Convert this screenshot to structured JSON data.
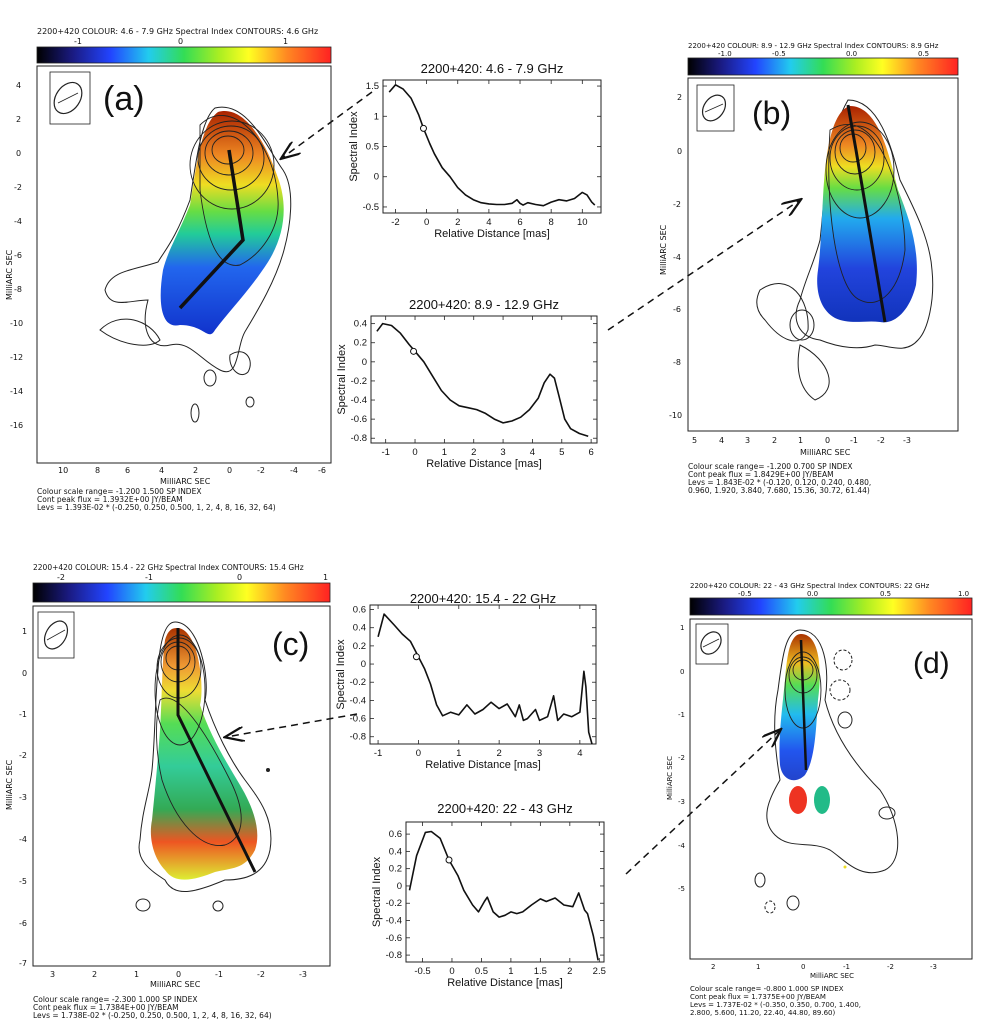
{
  "source": "2200+420",
  "panels": {
    "a": {
      "label": "(a)",
      "header": "2200+420   COLOUR: 4.6 - 7.9 GHz Spectral Index   CONTOURS: 4.6 GHz",
      "colorbar_ticks": [
        "-1",
        "0",
        "1"
      ],
      "xlabel": "MilliARC SEC",
      "ylabel": "MilliARC SEC",
      "x_ticks": [
        "10",
        "8",
        "6",
        "4",
        "2",
        "0",
        "-2",
        "-4",
        "-6"
      ],
      "y_ticks": [
        "4",
        "2",
        "0",
        "-2",
        "-4",
        "-6",
        "-8",
        "-10",
        "-12",
        "-14",
        "-16"
      ],
      "footer": [
        "Colour scale range= -1.200 1.500 SP INDEX",
        "Cont peak flux = 1.3932E+00 JY/BEAM",
        "Levs = 1.393E-02 * (-0.250, 0.250, 0.500, 1, 2, 4, 8, 16, 32, 64)"
      ]
    },
    "b": {
      "label": "(b)",
      "header": "2200+420   COLOUR: 8.9 - 12.9 GHz Spectral Index   CONTOURS: 8.9 GHz",
      "colorbar_ticks": [
        "-1.0",
        "-0.5",
        "0.0",
        "0.5"
      ],
      "xlabel": "MilliARC SEC",
      "ylabel": "MilliARC SEC",
      "x_ticks": [
        "5",
        "4",
        "3",
        "2",
        "1",
        "0",
        "-1",
        "-2",
        "-3"
      ],
      "y_ticks": [
        "2",
        "0",
        "-2",
        "-4",
        "-6",
        "-8",
        "-10"
      ],
      "footer": [
        "Colour scale range= -1.200 0.700 SP INDEX",
        "Cont peak flux = 1.8429E+00 JY/BEAM",
        "Levs = 1.843E-02 * (-0.120, 0.120, 0.240, 0.480,",
        "0.960, 1.920, 3.840, 7.680, 15.36, 30.72, 61.44)"
      ]
    },
    "c": {
      "label": "(c)",
      "header": "2200+420   COLOUR: 15.4 - 22 GHz Spectral Index   CONTOURS: 15.4 GHz",
      "colorbar_ticks": [
        "-2",
        "-1",
        "0",
        "1"
      ],
      "xlabel": "MilliARC SEC",
      "ylabel": "MilliARC SEC",
      "x_ticks": [
        "3",
        "2",
        "1",
        "0",
        "-1",
        "-2",
        "-3"
      ],
      "y_ticks": [
        "1",
        "0",
        "-1",
        "-2",
        "-3",
        "-4",
        "-5",
        "-6",
        "-7"
      ],
      "footer": [
        "Colour scale range= -2.300 1.000 SP INDEX",
        "Cont peak flux = 1.7384E+00 JY/BEAM",
        "Levs = 1.738E-02 * (-0.250, 0.250, 0.500, 1, 2, 4, 8, 16, 32, 64)"
      ]
    },
    "d": {
      "label": "(d)",
      "header": "2200+420   COLOUR: 22 - 43 GHz Spectral Index   CONTOURS: 22 GHz",
      "colorbar_ticks": [
        "-0.5",
        "0.0",
        "0.5",
        "1.0"
      ],
      "xlabel": "MilliARC SEC",
      "ylabel": "MilliARC SEC",
      "x_ticks": [
        "2",
        "1",
        "0",
        "-1",
        "-2",
        "-3"
      ],
      "y_ticks": [
        "1",
        "0",
        "-1",
        "-2",
        "-3",
        "-4",
        "-5"
      ],
      "footer": [
        "Colour scale range= -0.800 1.000 SP INDEX",
        "Cont peak flux = 1.7375E+00 JY/BEAM",
        "Levs = 1.737E-02 * (-0.350, 0.350, 0.700, 1.400,",
        "2.800, 5.600, 11.20, 22.40, 44.80, 89.60)"
      ]
    }
  },
  "chart_data": [
    {
      "type": "line",
      "title": "2200+420: 4.6 - 7.9 GHz",
      "xlabel": "Relative Distance [mas]",
      "ylabel": "Spectral Index",
      "xlim": [
        -2.8,
        11.2
      ],
      "ylim": [
        -0.6,
        1.6
      ],
      "x_ticks": [
        -2,
        0,
        2,
        4,
        6,
        8,
        10
      ],
      "y_ticks": [
        -0.5,
        0,
        0.5,
        1,
        1.5
      ],
      "marker": [
        -0.2,
        0.8
      ],
      "x": [
        -2.4,
        -2.0,
        -1.5,
        -1.0,
        -0.5,
        -0.2,
        0.2,
        0.5,
        1.0,
        1.5,
        2.0,
        2.5,
        3.0,
        3.5,
        4.0,
        4.5,
        5.0,
        5.5,
        5.8,
        6.0,
        6.2,
        6.5,
        7.0,
        7.5,
        8.0,
        8.5,
        9.0,
        9.5,
        10.0,
        10.3,
        10.6,
        10.8
      ],
      "values": [
        1.4,
        1.52,
        1.45,
        1.3,
        1.02,
        0.8,
        0.55,
        0.38,
        0.15,
        0.0,
        -0.18,
        -0.3,
        -0.38,
        -0.43,
        -0.45,
        -0.46,
        -0.46,
        -0.44,
        -0.38,
        -0.44,
        -0.47,
        -0.43,
        -0.46,
        -0.48,
        -0.42,
        -0.38,
        -0.4,
        -0.36,
        -0.26,
        -0.3,
        -0.42,
        -0.47
      ]
    },
    {
      "type": "line",
      "title": "2200+420: 8.9 - 12.9 GHz",
      "xlabel": "Relative Distance [mas]",
      "ylabel": "Spectral Index",
      "xlim": [
        -1.5,
        6.2
      ],
      "ylim": [
        -0.85,
        0.48
      ],
      "x_ticks": [
        -1,
        0,
        1,
        2,
        3,
        4,
        5,
        6
      ],
      "y_ticks": [
        -0.8,
        -0.6,
        -0.4,
        -0.2,
        0,
        0.2,
        0.4
      ],
      "marker": [
        -0.05,
        0.11
      ],
      "x": [
        -1.3,
        -1.1,
        -0.8,
        -0.5,
        -0.2,
        0.0,
        0.3,
        0.6,
        0.9,
        1.2,
        1.5,
        1.8,
        2.1,
        2.4,
        2.7,
        3.0,
        3.3,
        3.6,
        3.9,
        4.2,
        4.4,
        4.6,
        4.75,
        4.9,
        5.1,
        5.3,
        5.6,
        5.9
      ],
      "values": [
        0.32,
        0.4,
        0.38,
        0.3,
        0.18,
        0.11,
        0.0,
        -0.15,
        -0.3,
        -0.4,
        -0.46,
        -0.48,
        -0.5,
        -0.54,
        -0.6,
        -0.64,
        -0.62,
        -0.58,
        -0.5,
        -0.38,
        -0.22,
        -0.13,
        -0.17,
        -0.35,
        -0.6,
        -0.7,
        -0.75,
        -0.78
      ]
    },
    {
      "type": "line",
      "title": "2200+420: 15.4 - 22 GHz",
      "xlabel": "Relative Distance [mas]",
      "ylabel": "Spectral Index",
      "xlim": [
        -1.2,
        4.4
      ],
      "ylim": [
        -0.88,
        0.65
      ],
      "x_ticks": [
        -1,
        0,
        1,
        2,
        3,
        4
      ],
      "y_ticks": [
        -0.8,
        -0.6,
        -0.4,
        -0.2,
        0,
        0.2,
        0.4,
        0.6
      ],
      "marker": [
        -0.05,
        0.08
      ],
      "x": [
        -1.0,
        -0.85,
        -0.6,
        -0.4,
        -0.2,
        0.0,
        0.15,
        0.3,
        0.45,
        0.6,
        0.8,
        1.0,
        1.2,
        1.4,
        1.6,
        1.8,
        2.0,
        2.2,
        2.4,
        2.5,
        2.6,
        2.7,
        2.9,
        3.0,
        3.2,
        3.35,
        3.45,
        3.6,
        3.8,
        4.0,
        4.1,
        4.15,
        4.22,
        4.3
      ],
      "values": [
        0.3,
        0.55,
        0.43,
        0.33,
        0.25,
        0.08,
        -0.05,
        -0.22,
        -0.45,
        -0.57,
        -0.53,
        -0.56,
        -0.45,
        -0.55,
        -0.5,
        -0.42,
        -0.49,
        -0.44,
        -0.58,
        -0.45,
        -0.62,
        -0.6,
        -0.5,
        -0.62,
        -0.58,
        -0.35,
        -0.62,
        -0.55,
        -0.58,
        -0.53,
        -0.08,
        -0.25,
        -0.75,
        -0.88
      ]
    },
    {
      "type": "line",
      "title": "2200+420: 22 - 43 GHz",
      "xlabel": "Relative Distance [mas]",
      "ylabel": "Spectral Index",
      "xlim": [
        -0.78,
        2.58
      ],
      "ylim": [
        -0.88,
        0.74
      ],
      "x_ticks": [
        -0.5,
        0,
        0.5,
        1,
        1.5,
        2,
        2.5
      ],
      "y_ticks": [
        -0.8,
        -0.6,
        -0.4,
        -0.2,
        0,
        0.2,
        0.4,
        0.6
      ],
      "marker": [
        -0.05,
        0.3
      ],
      "x": [
        -0.72,
        -0.6,
        -0.45,
        -0.35,
        -0.2,
        -0.05,
        0.1,
        0.2,
        0.35,
        0.45,
        0.55,
        0.6,
        0.7,
        0.8,
        0.9,
        1.0,
        1.1,
        1.2,
        1.35,
        1.5,
        1.6,
        1.75,
        1.9,
        2.05,
        2.15,
        2.25,
        2.3,
        2.4,
        2.48
      ],
      "values": [
        -0.05,
        0.35,
        0.62,
        0.63,
        0.55,
        0.3,
        0.12,
        -0.05,
        -0.22,
        -0.3,
        -0.18,
        -0.13,
        -0.3,
        -0.36,
        -0.34,
        -0.3,
        -0.32,
        -0.3,
        -0.22,
        -0.15,
        -0.18,
        -0.14,
        -0.22,
        -0.24,
        -0.08,
        -0.28,
        -0.32,
        -0.58,
        -0.86
      ]
    }
  ]
}
